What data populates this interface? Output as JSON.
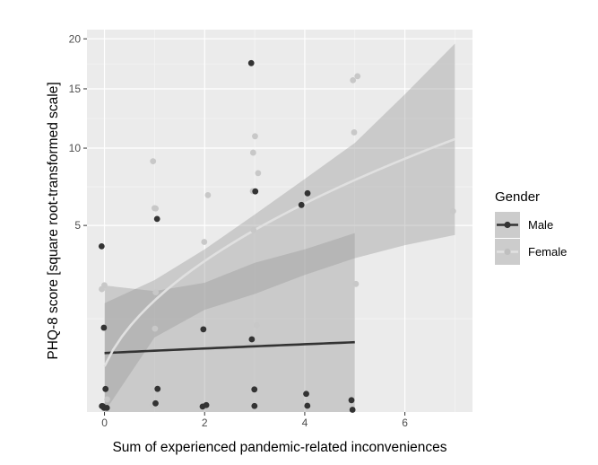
{
  "chart_data": {
    "type": "scatter",
    "xlabel": "Sum of experienced pandemic-related inconveniences",
    "ylabel": "PHQ-8 score [square root-transformed scale]",
    "y_scale": "sqrt",
    "xlim": [
      -0.35,
      7.35
    ],
    "ylim": [
      0,
      21
    ],
    "x_ticks": [
      0,
      2,
      4,
      6
    ],
    "y_ticks": [
      5,
      10,
      15,
      20
    ],
    "grid": true,
    "legend": {
      "title": "Gender",
      "position": "right",
      "entries": [
        {
          "label": "Male",
          "color": "#333333"
        },
        {
          "label": "Female",
          "color": "#cccccc"
        }
      ]
    },
    "series": [
      {
        "name": "Male",
        "color": "#333333",
        "points": [
          [
            0,
            4
          ],
          [
            0,
            1
          ],
          [
            0,
            0
          ],
          [
            0,
            0
          ],
          [
            0,
            0
          ],
          [
            0,
            0
          ],
          [
            0,
            0
          ],
          [
            1,
            5.3
          ],
          [
            1,
            0
          ],
          [
            1,
            0
          ],
          [
            2,
            1
          ],
          [
            2,
            0
          ],
          [
            2,
            0
          ],
          [
            3,
            17.5
          ],
          [
            3,
            7
          ],
          [
            3,
            0.7
          ],
          [
            3,
            0
          ],
          [
            3,
            0
          ],
          [
            4,
            6.9
          ],
          [
            4,
            6.2
          ],
          [
            4,
            0
          ],
          [
            4,
            0
          ],
          [
            5,
            0
          ],
          [
            5,
            0
          ]
        ],
        "fit": {
          "x": [
            0,
            5
          ],
          "y": [
            0.5,
            0.7
          ]
        },
        "ci": {
          "x": [
            0,
            1,
            2,
            3,
            4,
            5
          ],
          "upper": [
            2.3,
            2.1,
            2.4,
            3.2,
            3.8,
            4.6
          ],
          "lower": [
            0,
            0,
            0,
            0,
            0,
            0
          ]
        }
      },
      {
        "name": "Female",
        "color": "#cccccc",
        "points": [
          [
            0,
            2.3
          ],
          [
            0,
            2.2
          ],
          [
            0,
            0
          ],
          [
            0,
            0
          ],
          [
            1,
            9
          ],
          [
            1,
            6
          ],
          [
            1,
            6
          ],
          [
            1,
            2.1
          ],
          [
            1,
            1
          ],
          [
            1,
            0
          ],
          [
            2,
            6.8
          ],
          [
            2,
            4.1
          ],
          [
            2,
            1
          ],
          [
            3,
            10.9
          ],
          [
            3,
            9.7
          ],
          [
            3,
            8.2
          ],
          [
            3,
            7
          ],
          [
            3,
            4.8
          ],
          [
            3,
            1.1
          ],
          [
            3,
            0.8
          ],
          [
            4,
            7
          ],
          [
            5,
            16.2
          ],
          [
            5,
            15.8
          ],
          [
            5,
            11.2
          ],
          [
            5,
            2.4
          ],
          [
            7,
            5.8
          ]
        ],
        "fit": {
          "x": [
            0,
            7
          ],
          "y": [
            0.3,
            10.7
          ]
        },
        "ci": {
          "x": [
            0,
            1,
            2,
            3,
            4,
            5,
            6,
            7
          ],
          "upper": [
            1.7,
            2.5,
            3.8,
            5.6,
            7.8,
            10.4,
            14.5,
            19.5
          ],
          "lower": [
            0,
            0.8,
            1.5,
            2.0,
            2.7,
            3.4,
            4.0,
            4.5
          ]
        }
      }
    ]
  }
}
